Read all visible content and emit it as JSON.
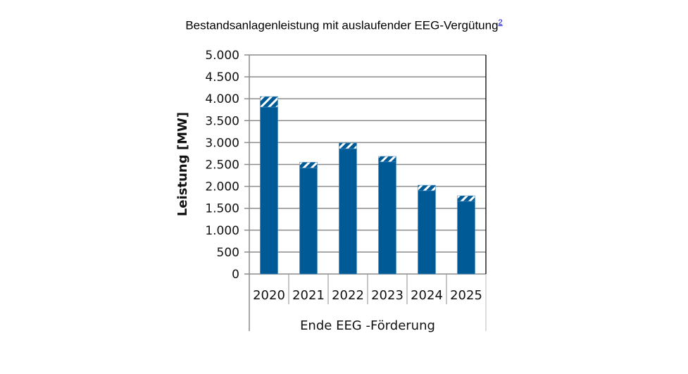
{
  "chart_data": {
    "type": "bar",
    "title": "Bestandsanlagenleistung mit auslaufender EEG-Vergütung",
    "title_footnote": "2",
    "xlabel": "Ende EEG -Förderung",
    "ylabel": "Leistung [MW]",
    "categories": [
      "2020",
      "2021",
      "2022",
      "2023",
      "2024",
      "2025"
    ],
    "series": [
      {
        "name": "solid",
        "values": [
          3810,
          2420,
          2860,
          2560,
          1900,
          1660
        ],
        "color": "#005a96"
      },
      {
        "name": "hatched",
        "values": [
          240,
          130,
          130,
          125,
          125,
          125
        ],
        "color": "#005a96"
      }
    ],
    "ylim": [
      0,
      5000
    ],
    "yticks": [
      0,
      500,
      1000,
      1500,
      2000,
      2500,
      3000,
      3500,
      4000,
      4500,
      5000
    ],
    "ytick_labels": [
      "0",
      "500",
      "1.000",
      "1.500",
      "2.000",
      "2.500",
      "3.000",
      "3.500",
      "4.000",
      "4.500",
      "5.000"
    ],
    "grid": true,
    "stacked": true
  }
}
